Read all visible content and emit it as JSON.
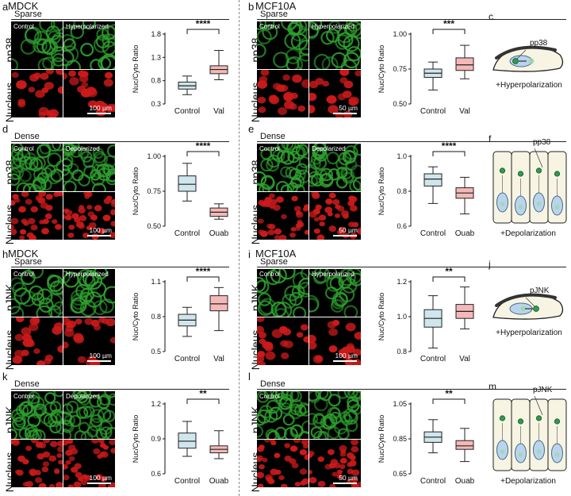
{
  "header": {
    "left_title": "MDCK",
    "right_title": "MCF10A"
  },
  "labels": {
    "sparse": "Sparse",
    "dense": "Dense",
    "nucleus": "Nucleus",
    "control": "Control",
    "hyperpolarized": "Hyperpolarized",
    "depolarized": "Depolarized"
  },
  "colors": {
    "control_box": "#cfe6ec",
    "treated_box": "#f5b8b8",
    "green_stain": "#2ea12e",
    "red_stain": "#cc1a1a",
    "cell_fill": "#f7f4e3",
    "nucleus_fill": "#b9d4ec"
  },
  "panels": [
    {
      "letter": "a",
      "condition": "Sparse",
      "stain": "pp38",
      "img_left": "Control",
      "img_right": "Hyperpolarized",
      "scale": "100 µm"
    },
    {
      "letter": "b",
      "condition": "Sparse",
      "stain": "pp38",
      "img_left": "Control",
      "img_right": "Hyperpolarized",
      "scale": "50 µm"
    },
    {
      "letter": "d",
      "condition": "Dense",
      "stain": "pp38",
      "img_left": "Control",
      "img_right": "Depolarized",
      "scale": "100 µm"
    },
    {
      "letter": "e",
      "condition": "Dense",
      "stain": "pp38",
      "img_left": "Control",
      "img_right": "Depolarized",
      "scale": "50 µm"
    },
    {
      "letter": "h",
      "condition": "Sparse",
      "stain": "pJNK",
      "img_left": "Control",
      "img_right": "Hyperpolarized",
      "scale": "100 µm"
    },
    {
      "letter": "i",
      "condition": "Sparse",
      "stain": "pJNK",
      "img_left": "Control",
      "img_right": "Hyperpolarized",
      "scale": "100 µm"
    },
    {
      "letter": "k",
      "condition": "Dense",
      "stain": "pJNK",
      "img_left": "Control",
      "img_right": "Depolarized",
      "scale": "100 µm"
    },
    {
      "letter": "l",
      "condition": "Dense",
      "stain": "pJNK",
      "img_left": "Control",
      "img_right": "",
      "scale": "50 µm"
    }
  ],
  "schematics": [
    {
      "letter": "c",
      "protein": "pp38",
      "caption": "+Hyperpolarization"
    },
    {
      "letter": "f",
      "protein": "pp38",
      "caption": "+Depolarization"
    },
    {
      "letter": "j",
      "protein": "pJNK",
      "caption": "+Hyperpolarization"
    },
    {
      "letter": "m",
      "protein": "pJNK",
      "caption": "+Depolarization"
    }
  ],
  "chart_data": [
    {
      "panel": "a",
      "type": "box",
      "ylabel": "Nuc/Cyto Ratio",
      "ticks": [
        "0.3",
        "0.8",
        "1.3",
        "1.8"
      ],
      "ylim": [
        0.3,
        1.8
      ],
      "categories": [
        "Control",
        "Val"
      ],
      "significance": "****",
      "boxes": [
        {
          "min": 0.5,
          "q1": 0.62,
          "median": 0.69,
          "q3": 0.77,
          "max": 0.9
        },
        {
          "min": 0.82,
          "q1": 0.95,
          "median": 1.04,
          "q3": 1.12,
          "max": 1.45
        }
      ]
    },
    {
      "panel": "b",
      "type": "box",
      "ylabel": "Nuc/Cyto Ratio",
      "ticks": [
        "0.50",
        "0.75",
        "1.00"
      ],
      "ylim": [
        0.5,
        1.0
      ],
      "categories": [
        "Control",
        "Val"
      ],
      "significance": "***",
      "boxes": [
        {
          "min": 0.6,
          "q1": 0.69,
          "median": 0.72,
          "q3": 0.75,
          "max": 0.8
        },
        {
          "min": 0.68,
          "q1": 0.74,
          "median": 0.78,
          "q3": 0.83,
          "max": 0.92
        }
      ]
    },
    {
      "panel": "d",
      "type": "box",
      "ylabel": "Nuc/Cyto Ratio",
      "ticks": [
        "0.50",
        "0.75",
        "1.00"
      ],
      "ylim": [
        0.5,
        1.0
      ],
      "categories": [
        "Control",
        "Ouab"
      ],
      "significance": "****",
      "boxes": [
        {
          "min": 0.68,
          "q1": 0.75,
          "median": 0.8,
          "q3": 0.86,
          "max": 0.95
        },
        {
          "min": 0.55,
          "q1": 0.57,
          "median": 0.6,
          "q3": 0.63,
          "max": 0.66
        }
      ]
    },
    {
      "panel": "e",
      "type": "box",
      "ylabel": "Nuc/Cyto Ratio",
      "ticks": [
        "0.6",
        "0.8",
        "1.0"
      ],
      "ylim": [
        0.6,
        1.0
      ],
      "categories": [
        "Control",
        "Ouab"
      ],
      "significance": "****",
      "boxes": [
        {
          "min": 0.73,
          "q1": 0.83,
          "median": 0.87,
          "q3": 0.9,
          "max": 0.94
        },
        {
          "min": 0.67,
          "q1": 0.76,
          "median": 0.79,
          "q3": 0.82,
          "max": 0.88
        }
      ]
    },
    {
      "panel": "h",
      "type": "box",
      "ylabel": "Nuc/Cyto Ratio",
      "ticks": [
        "0.5",
        "0.8",
        "1.1"
      ],
      "ylim": [
        0.5,
        1.1
      ],
      "categories": [
        "Control",
        "Val"
      ],
      "significance": "****",
      "boxes": [
        {
          "min": 0.63,
          "q1": 0.72,
          "median": 0.77,
          "q3": 0.82,
          "max": 0.88
        },
        {
          "min": 0.68,
          "q1": 0.85,
          "median": 0.91,
          "q3": 0.98,
          "max": 1.05
        }
      ]
    },
    {
      "panel": "i",
      "type": "box",
      "ylabel": "Nuc/Cyto Ratio",
      "ticks": [
        "0.8",
        "1.0",
        "1.2"
      ],
      "ylim": [
        0.8,
        1.2
      ],
      "categories": [
        "Control",
        "Val"
      ],
      "significance": "**",
      "boxes": [
        {
          "min": 0.82,
          "q1": 0.94,
          "median": 0.99,
          "q3": 1.04,
          "max": 1.12
        },
        {
          "min": 0.93,
          "q1": 0.99,
          "median": 1.03,
          "q3": 1.07,
          "max": 1.17
        }
      ]
    },
    {
      "panel": "k",
      "type": "box",
      "ylabel": "Nuc/Cyto Ratio",
      "ticks": [
        "0.6",
        "0.9",
        "1.2"
      ],
      "ylim": [
        0.6,
        1.2
      ],
      "categories": [
        "Control",
        "Ouab"
      ],
      "significance": "**",
      "boxes": [
        {
          "min": 0.75,
          "q1": 0.82,
          "median": 0.88,
          "q3": 0.95,
          "max": 1.05
        },
        {
          "min": 0.73,
          "q1": 0.78,
          "median": 0.81,
          "q3": 0.84,
          "max": 0.97
        }
      ]
    },
    {
      "panel": "l",
      "type": "box",
      "ylabel": "Nuc/Cyto Ratio",
      "ticks": [
        "0.65",
        "0.85",
        "1.05"
      ],
      "ylim": [
        0.65,
        1.05
      ],
      "categories": [
        "Control",
        "Ouab"
      ],
      "significance": "**",
      "boxes": [
        {
          "min": 0.77,
          "q1": 0.83,
          "median": 0.86,
          "q3": 0.89,
          "max": 0.96
        },
        {
          "min": 0.72,
          "q1": 0.79,
          "median": 0.81,
          "q3": 0.84,
          "max": 0.91
        }
      ]
    }
  ]
}
